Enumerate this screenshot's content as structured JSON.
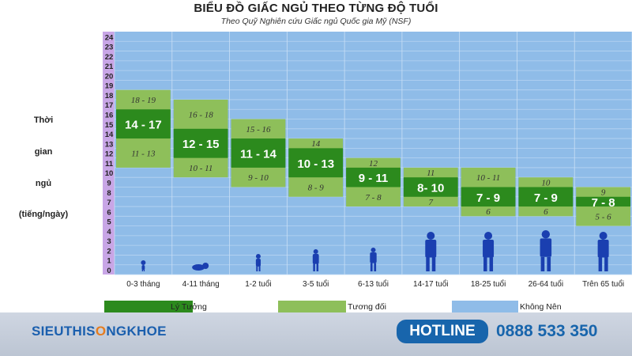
{
  "header": {
    "title": "BIỂU ĐỒ GIẤC NGỦ THEO TỪNG ĐỘ TUỔI",
    "subtitle": "Theo Quỹ Nghiên cứu Giấc ngủ Quốc gia Mỹ (NSF)"
  },
  "ylabel_lines": [
    "Thời",
    "gian",
    "ngủ",
    "(tiếng/ngày)"
  ],
  "chart_data": {
    "type": "bar",
    "title": "BIỂU ĐỒ GIẤC NGỦ THEO TỪNG ĐỘ TUỔI",
    "subtitle": "Theo Quỹ Nghiên cứu Giấc ngủ Quốc gia Mỹ (NSF)",
    "ylabel": "Thời gian ngủ (tiếng/ngày)",
    "xlabel": "",
    "ylim": [
      0,
      24
    ],
    "yticks": [
      0,
      1,
      2,
      3,
      4,
      5,
      6,
      7,
      8,
      9,
      10,
      11,
      12,
      13,
      14,
      15,
      16,
      17,
      18,
      19,
      20,
      21,
      22,
      23,
      24
    ],
    "categories": [
      "0-3 tháng",
      "4-11 tháng",
      "1-2 tuổi",
      "3-5 tuổi",
      "6-13 tuổi",
      "14-17 tuổi",
      "18-25 tuổi",
      "26-64 tuổi",
      "Trên 65 tuổi"
    ],
    "groups": [
      {
        "category": "0-3 tháng",
        "ideal": [
          14,
          17
        ],
        "ideal_label": "14 - 17",
        "upper": [
          17,
          19
        ],
        "upper_label": "18 - 19",
        "lower": [
          11,
          14
        ],
        "lower_label": "11 - 13"
      },
      {
        "category": "4-11 tháng",
        "ideal": [
          12,
          15
        ],
        "ideal_label": "12 - 15",
        "upper": [
          15,
          18
        ],
        "upper_label": "16 - 18",
        "lower": [
          10,
          12
        ],
        "lower_label": "10 - 11"
      },
      {
        "category": "1-2 tuổi",
        "ideal": [
          11,
          14
        ],
        "ideal_label": "11 - 14",
        "upper": [
          14,
          16
        ],
        "upper_label": "15 - 16",
        "lower": [
          9,
          11
        ],
        "lower_label": "9 - 10"
      },
      {
        "category": "3-5 tuổi",
        "ideal": [
          10,
          13
        ],
        "ideal_label": "10 - 13",
        "upper": [
          13,
          14
        ],
        "upper_label": "14",
        "lower": [
          8,
          10
        ],
        "lower_label": "8 - 9"
      },
      {
        "category": "6-13 tuổi",
        "ideal": [
          9,
          11
        ],
        "ideal_label": "9 - 11",
        "upper": [
          11,
          12
        ],
        "upper_label": "12",
        "lower": [
          7,
          9
        ],
        "lower_label": "7 - 8"
      },
      {
        "category": "14-17 tuổi",
        "ideal": [
          8,
          10
        ],
        "ideal_label": "8- 10",
        "upper": [
          10,
          11
        ],
        "upper_label": "11",
        "lower": [
          7,
          8
        ],
        "lower_label": "7"
      },
      {
        "category": "18-25 tuổi",
        "ideal": [
          7,
          9
        ],
        "ideal_label": "7 - 9",
        "upper": [
          9,
          11
        ],
        "upper_label": "10 - 11",
        "lower": [
          6,
          7
        ],
        "lower_label": "6"
      },
      {
        "category": "26-64 tuổi",
        "ideal": [
          7,
          9
        ],
        "ideal_label": "7 - 9",
        "upper": [
          9,
          10
        ],
        "upper_label": "10",
        "lower": [
          6,
          7
        ],
        "lower_label": "6"
      },
      {
        "category": "Trên 65 tuổi",
        "ideal": [
          7,
          8
        ],
        "ideal_label": "7 - 8",
        "upper": [
          8,
          9
        ],
        "upper_label": "9",
        "lower": [
          5,
          7
        ],
        "lower_label": "5 - 6"
      }
    ],
    "legend": [
      {
        "name": "Lý Tưởng",
        "color": "#2c8a1d"
      },
      {
        "name": "Tương đối",
        "color": "#8ebf5a"
      },
      {
        "name": "Không Nên",
        "color": "#8fbce8"
      }
    ],
    "legend_position": "bottom",
    "grid": true
  },
  "colors": {
    "ideal": "#2c8a1d",
    "upper_lower": "#8ebf5a",
    "background": "#8fbce8",
    "axis_strip": "#c8a6e6",
    "brand": "#1865ac"
  },
  "footer": {
    "logo_part1": "SIEUTHIS",
    "logo_o": "O",
    "logo_part2": "NGKHOE",
    "hotline_label": "HOTLINE",
    "phone": "0888 533 350"
  }
}
